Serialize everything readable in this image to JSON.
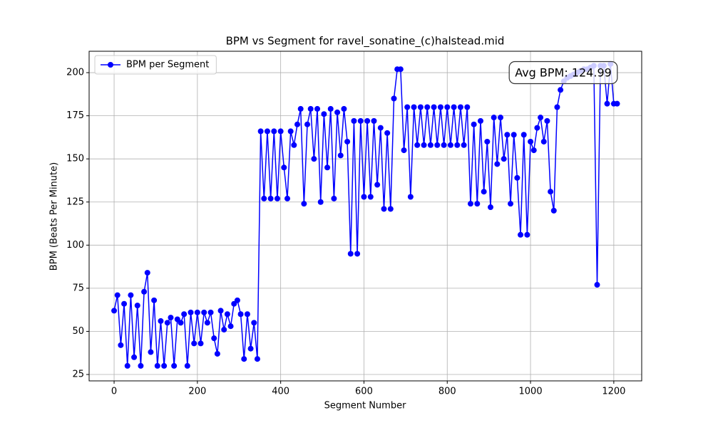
{
  "chart_data": {
    "type": "line",
    "title": "BPM vs Segment for ravel_sonatine_(c)halstead.mid",
    "xlabel": "Segment Number",
    "ylabel": "BPM (Beats Per Minute)",
    "annotation": "Avg BPM: 124.99",
    "x": [
      0,
      8,
      16,
      24,
      32,
      40,
      48,
      56,
      64,
      72,
      80,
      88,
      96,
      104,
      112,
      120,
      128,
      136,
      144,
      152,
      160,
      168,
      176,
      184,
      192,
      200,
      208,
      216,
      224,
      232,
      240,
      248,
      256,
      264,
      272,
      280,
      288,
      296,
      304,
      312,
      320,
      328,
      336,
      344,
      352,
      360,
      368,
      376,
      384,
      392,
      400,
      408,
      416,
      424,
      432,
      440,
      448,
      456,
      464,
      472,
      480,
      488,
      496,
      504,
      512,
      520,
      528,
      536,
      544,
      552,
      560,
      568,
      576,
      584,
      592,
      600,
      608,
      616,
      624,
      632,
      640,
      648,
      656,
      664,
      672,
      680,
      688,
      696,
      704,
      712,
      720,
      728,
      736,
      744,
      752,
      760,
      768,
      776,
      784,
      792,
      800,
      808,
      816,
      824,
      832,
      840,
      848,
      856,
      864,
      872,
      880,
      888,
      896,
      904,
      912,
      920,
      928,
      936,
      944,
      952,
      960,
      968,
      976,
      984,
      992,
      1000,
      1008,
      1016,
      1024,
      1032,
      1040,
      1048,
      1056,
      1064,
      1072,
      1080,
      1088,
      1096,
      1104,
      1112,
      1120,
      1128,
      1136,
      1144,
      1152,
      1160,
      1168,
      1176,
      1184,
      1192,
      1200,
      1208
    ],
    "series": [
      {
        "name": "BPM per Segment",
        "color": "#0000ff",
        "values": [
          62,
          71,
          42,
          66,
          30,
          71,
          35,
          65,
          30,
          73,
          84,
          38,
          68,
          30,
          56,
          30,
          55,
          58,
          30,
          57,
          55,
          60,
          30,
          61,
          43,
          61,
          43,
          61,
          55,
          61,
          46,
          37,
          62,
          51,
          60,
          53,
          66,
          68,
          60,
          34,
          60,
          40,
          55,
          34,
          166,
          127,
          166,
          127,
          166,
          127,
          166,
          145,
          127,
          166,
          158,
          170,
          179,
          124,
          170,
          179,
          150,
          179,
          125,
          176,
          145,
          179,
          127,
          177,
          152,
          179,
          160,
          95,
          172,
          95,
          172,
          128,
          172,
          128,
          172,
          135,
          168,
          121,
          165,
          121,
          185,
          202,
          202,
          155,
          180,
          128,
          180,
          158,
          180,
          158,
          180,
          158,
          180,
          158,
          180,
          158,
          180,
          158,
          180,
          158,
          180,
          158,
          180,
          124,
          170,
          124,
          172,
          131,
          160,
          122,
          174,
          147,
          174,
          150,
          164,
          124,
          164,
          139,
          106,
          164,
          106,
          160,
          155,
          168,
          174,
          160,
          172,
          131,
          120,
          180,
          190,
          195,
          197,
          198,
          199,
          200,
          201,
          202,
          202,
          203,
          204,
          77,
          204,
          204,
          182,
          205,
          182,
          182
        ]
      }
    ],
    "xlim": [
      -60,
      1267
    ],
    "ylim": [
      21.3,
      212.4
    ],
    "xticks": [
      0,
      200,
      400,
      600,
      800,
      1000,
      1200
    ],
    "yticks": [
      25,
      50,
      75,
      100,
      125,
      150,
      175,
      200
    ],
    "grid": true,
    "legend": "upper-left"
  }
}
